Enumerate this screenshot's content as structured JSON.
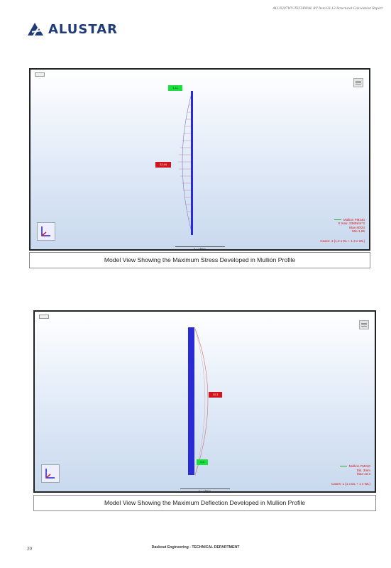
{
  "header": {
    "report_ref": "ALU0207WV-TECHNIAL RV Item 03-12-Structural Calculation Report",
    "logo_text": "ALUSTAR"
  },
  "figures": [
    {
      "legend_series": "Mullion FM240",
      "legend_lines": [
        "S max: 23MN/m^2",
        "Max-40/24",
        "Min-1.85"
      ],
      "legend_case": "Cases: 4 (1.2 x DL + 1.3 x WL)",
      "green_tag": "1.11",
      "red_tag": "22.44",
      "scale_text": "0 — 1.500 m",
      "caption": "Model View Showing the Maximum Stress Developed in Mullion Profile"
    },
    {
      "legend_series": "Mullion FM240",
      "legend_lines": [
        "Dis. 3mm",
        "Max-10.3"
      ],
      "legend_case": "Cases: 1 (1 x DL + 1 x WL)",
      "green_tag": "0.4",
      "red_tag": "10.3",
      "scale_text": "0 — 1.500 m",
      "caption": "Model View Showing the Maximum Deflection Developed in Mullion Profile"
    }
  ],
  "footer": {
    "page_number": "20",
    "company": "Dasbout Engineering - TECHNICAL DEPARTMENT"
  },
  "colors": {
    "brand": "#1f3c79",
    "member": "#2b2bd6",
    "diagram_line": "#d07070",
    "tag_green": "#19e03a",
    "tag_red": "#d0161c",
    "legend_text": "#dd1111"
  }
}
